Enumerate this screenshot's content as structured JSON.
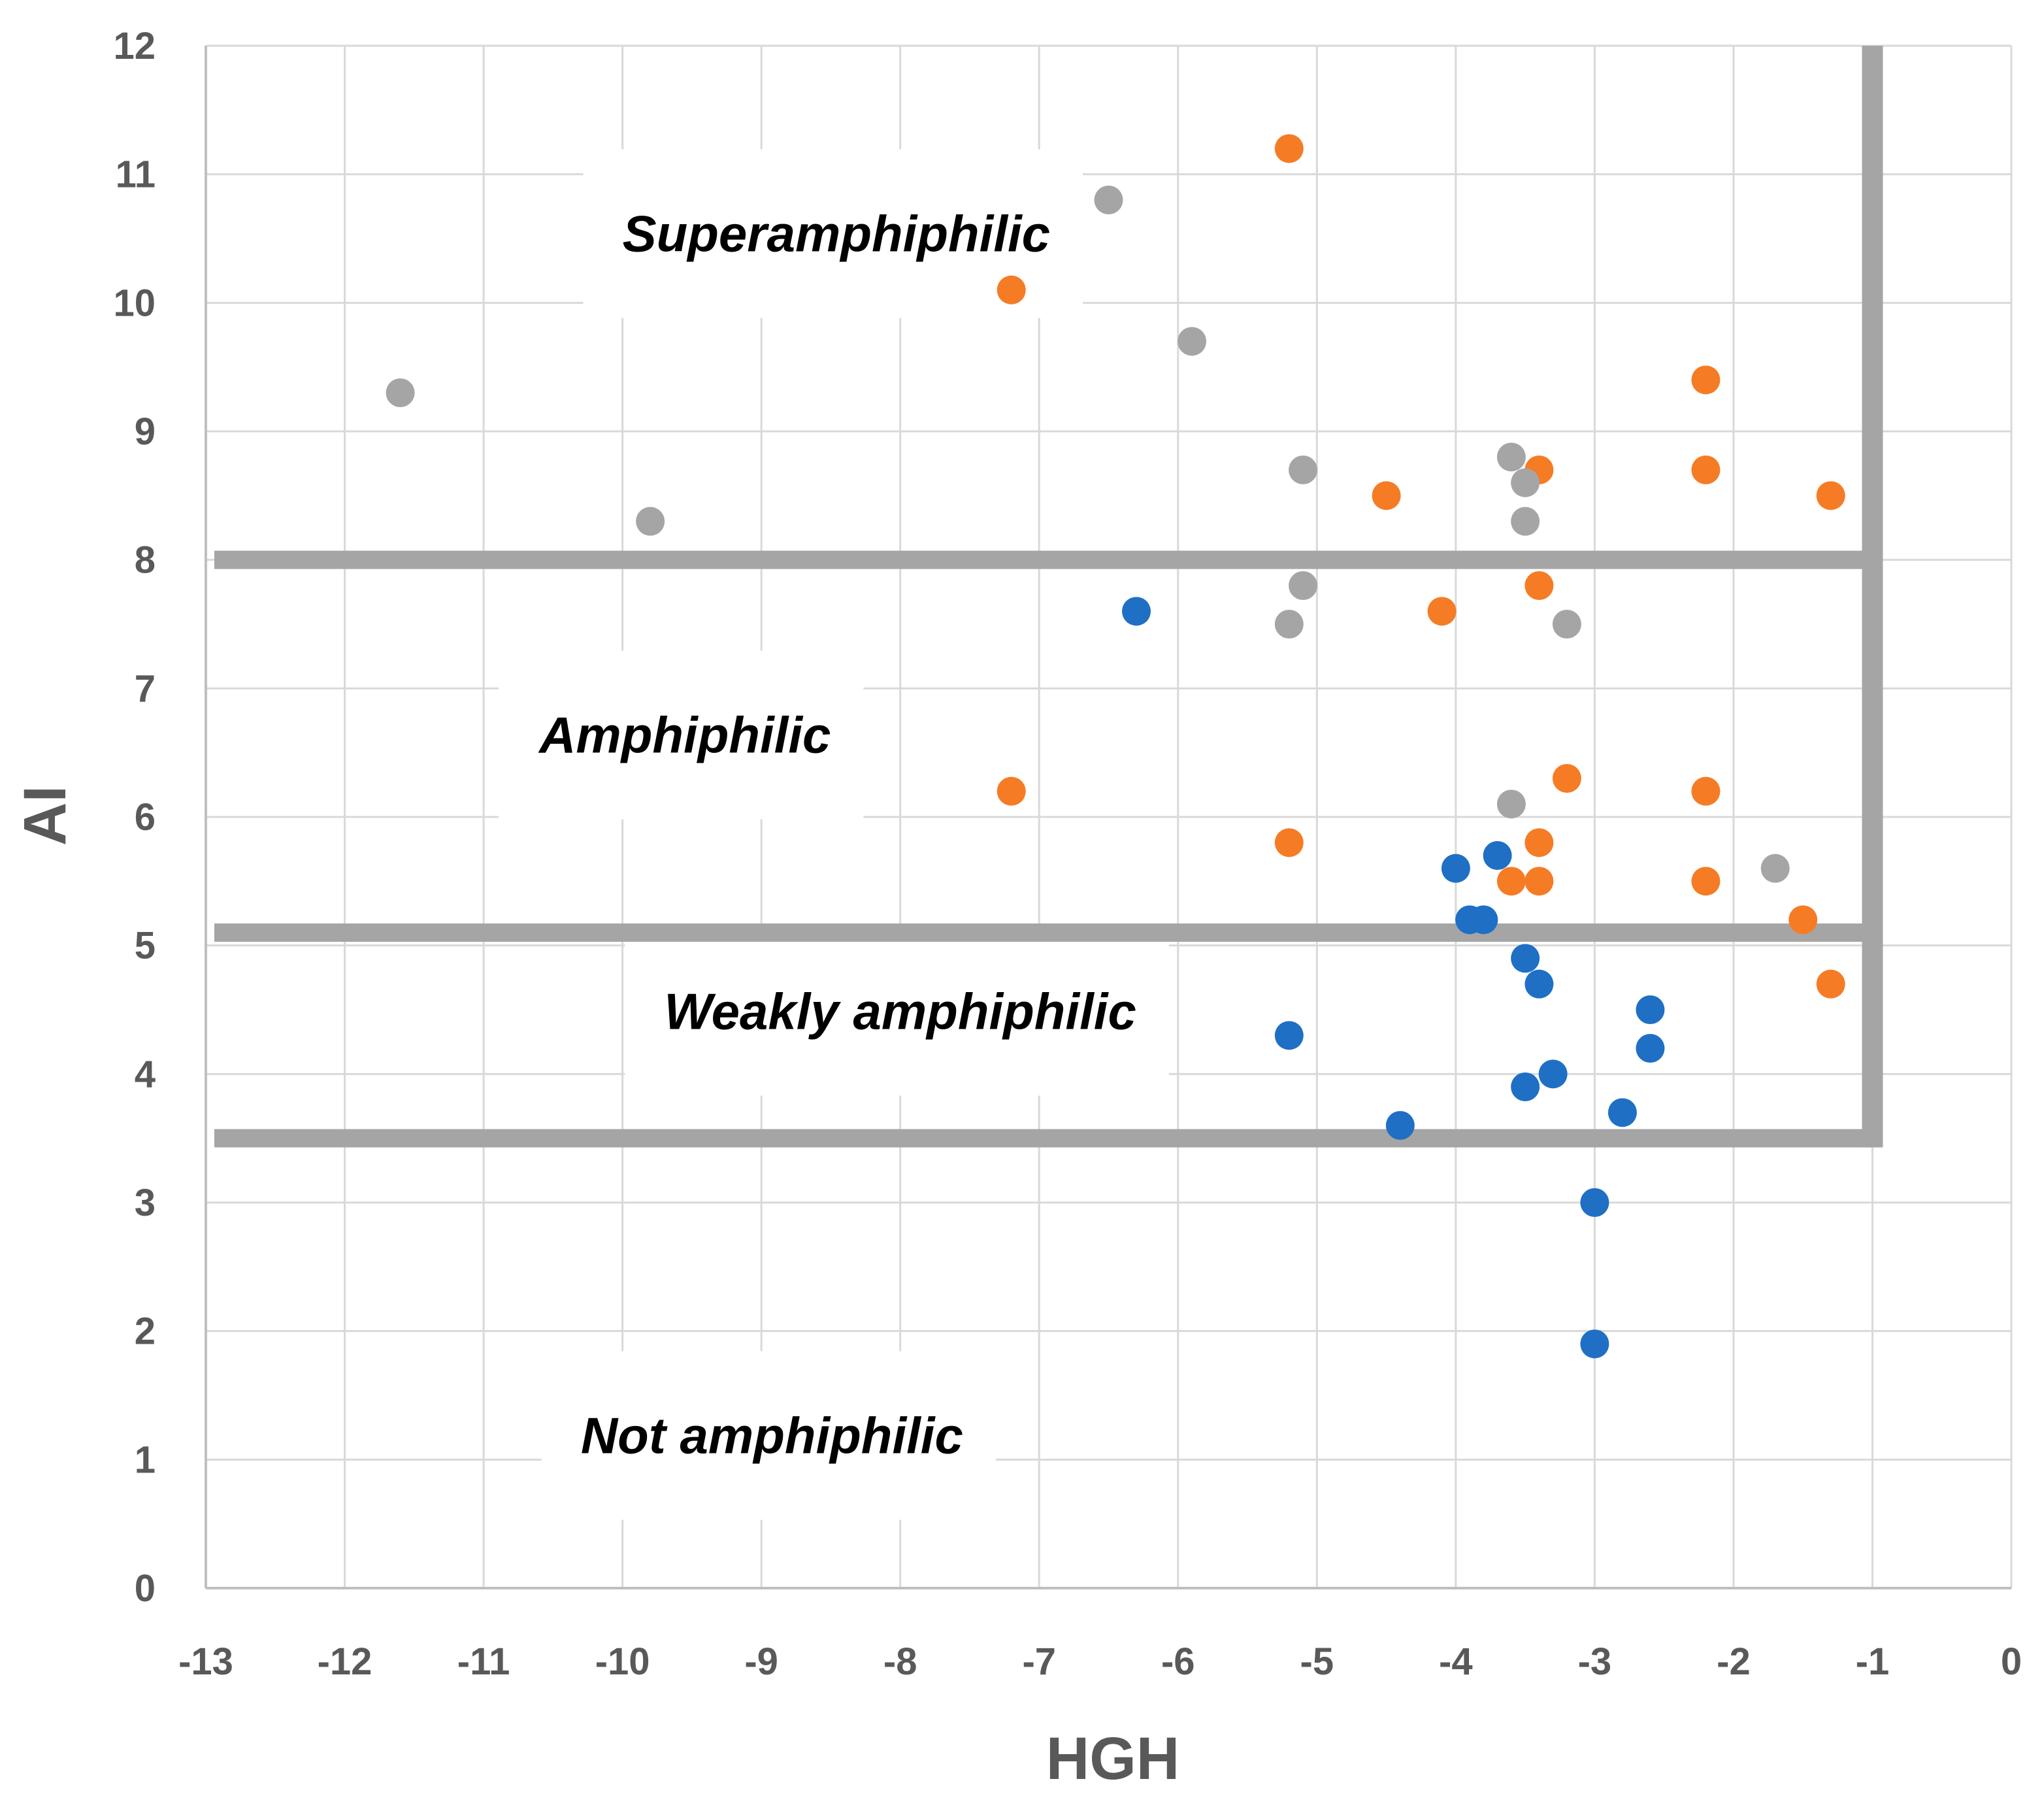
{
  "chart_data": {
    "type": "scatter",
    "title": "",
    "xlabel": "HGH",
    "ylabel": "AI",
    "xlim": [
      -13,
      0
    ],
    "ylim": [
      0,
      12
    ],
    "xticks": [
      "-13",
      "-12",
      "-11",
      "-10",
      "-9",
      "-8",
      "-7",
      "-6",
      "-5",
      "-4",
      "-3",
      "-2",
      "-1",
      "0"
    ],
    "yticks": [
      "0",
      "1",
      "2",
      "3",
      "4",
      "5",
      "6",
      "7",
      "8",
      "9",
      "10",
      "11",
      "12"
    ],
    "grid": true,
    "legend": "none",
    "threshold_lines": {
      "horizontal": [
        8,
        5.1,
        3.5
      ],
      "vertical": -1,
      "color": "#A5A5A5"
    },
    "regions": [
      {
        "label": "Superamphiphilic",
        "x": -10,
        "y": 10.4
      },
      {
        "label": "Amphiphilic",
        "x": -10.6,
        "y": 6.5
      },
      {
        "label": "Weakly amphiphilic",
        "x": -9.7,
        "y": 4.35
      },
      {
        "label": "Not amphiphilic",
        "x": -10.3,
        "y": 1.05
      }
    ],
    "series": [
      {
        "name": "blue",
        "color": "#1F6FC5",
        "points": [
          [
            -6.3,
            7.6
          ],
          [
            -5.2,
            4.3
          ],
          [
            -4.4,
            3.6
          ],
          [
            -4.0,
            5.6
          ],
          [
            -3.9,
            5.2
          ],
          [
            -3.8,
            5.2
          ],
          [
            -3.7,
            5.7
          ],
          [
            -3.5,
            4.9
          ],
          [
            -3.4,
            4.7
          ],
          [
            -3.5,
            3.9
          ],
          [
            -3.3,
            4.0
          ],
          [
            -3.0,
            3.0
          ],
          [
            -3.0,
            1.9
          ],
          [
            -2.8,
            3.7
          ],
          [
            -2.6,
            4.5
          ],
          [
            -2.6,
            4.2
          ]
        ]
      },
      {
        "name": "orange",
        "color": "#F57C25",
        "points": [
          [
            -5.2,
            11.2
          ],
          [
            -7.2,
            10.1
          ],
          [
            -7.2,
            6.2
          ],
          [
            -5.2,
            5.8
          ],
          [
            -4.5,
            8.5
          ],
          [
            -4.1,
            7.6
          ],
          [
            -3.4,
            8.7
          ],
          [
            -3.4,
            7.8
          ],
          [
            -3.2,
            6.3
          ],
          [
            -3.4,
            5.8
          ],
          [
            -3.6,
            5.5
          ],
          [
            -3.4,
            5.5
          ],
          [
            -2.2,
            9.4
          ],
          [
            -2.2,
            8.7
          ],
          [
            -2.2,
            6.2
          ],
          [
            -2.2,
            5.5
          ],
          [
            -1.3,
            8.5
          ],
          [
            -1.5,
            5.2
          ],
          [
            -1.3,
            4.7
          ]
        ]
      },
      {
        "name": "gray",
        "color": "#A5A5A5",
        "points": [
          [
            -11.6,
            9.3
          ],
          [
            -9.8,
            8.3
          ],
          [
            -6.5,
            10.8
          ],
          [
            -5.9,
            9.7
          ],
          [
            -5.1,
            8.7
          ],
          [
            -5.1,
            7.8
          ],
          [
            -5.2,
            7.5
          ],
          [
            -3.6,
            8.8
          ],
          [
            -3.5,
            8.6
          ],
          [
            -3.5,
            8.3
          ],
          [
            -3.2,
            7.5
          ],
          [
            -3.6,
            6.1
          ],
          [
            -1.7,
            5.6
          ]
        ]
      }
    ]
  }
}
